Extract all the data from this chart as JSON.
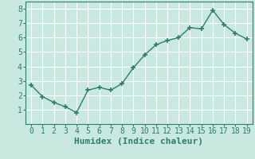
{
  "x": [
    0,
    1,
    2,
    3,
    4,
    5,
    6,
    7,
    8,
    9,
    10,
    11,
    12,
    13,
    14,
    15,
    16,
    17,
    18,
    19
  ],
  "y": [
    2.7,
    1.9,
    1.5,
    1.2,
    0.8,
    2.35,
    2.55,
    2.35,
    2.8,
    3.9,
    4.8,
    5.5,
    5.8,
    6.0,
    6.7,
    6.6,
    7.9,
    6.9,
    6.3,
    5.9
  ],
  "line_color": "#2e7d6e",
  "marker": "+",
  "marker_size": 4,
  "xlabel": "Humidex (Indice chaleur)",
  "xlim": [
    -0.5,
    19.5
  ],
  "ylim": [
    0,
    8.5
  ],
  "yticks": [
    1,
    2,
    3,
    4,
    5,
    6,
    7,
    8
  ],
  "xticks": [
    0,
    1,
    2,
    3,
    4,
    5,
    6,
    7,
    8,
    9,
    10,
    11,
    12,
    13,
    14,
    15,
    16,
    17,
    18,
    19
  ],
  "bg_color": "#c8e8e0",
  "grid_color": "#ffffff",
  "font_family": "monospace",
  "tick_fontsize": 7,
  "xlabel_fontsize": 8
}
